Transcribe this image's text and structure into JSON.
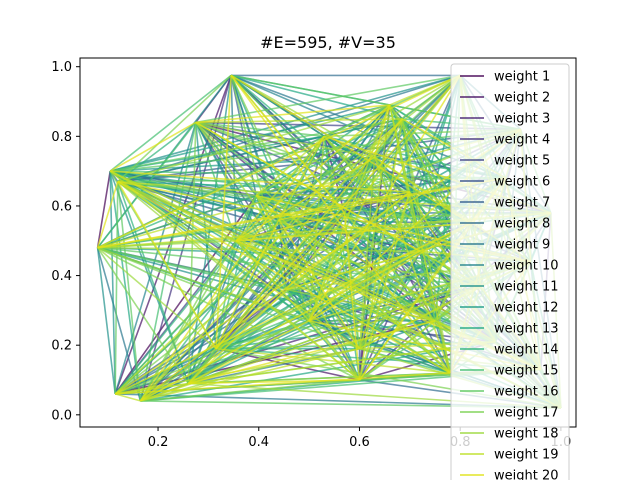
{
  "chart_data": {
    "type": "network",
    "title": "#E=595, #V=35",
    "xlabel": "",
    "ylabel": "",
    "xlim": [
      0.045,
      1.03
    ],
    "ylim": [
      -0.035,
      1.025
    ],
    "xticks": [
      0.2,
      0.4,
      0.6,
      0.8,
      1.0
    ],
    "xtick_labels": [
      "0.2",
      "0.4",
      "0.6",
      "0.8",
      "1.0"
    ],
    "yticks": [
      0.0,
      0.2,
      0.4,
      0.6,
      0.8,
      1.0
    ],
    "ytick_labels": [
      "0.0",
      "0.2",
      "0.4",
      "0.6",
      "0.8",
      "1.0"
    ],
    "grid": false,
    "colormap": "viridis",
    "edge_alpha": 0.7,
    "nodes": [
      [
        0.08,
        0.48
      ],
      [
        0.105,
        0.7
      ],
      [
        0.12,
        0.67
      ],
      [
        0.115,
        0.06
      ],
      [
        0.165,
        0.04
      ],
      [
        0.26,
        0.09
      ],
      [
        0.275,
        0.84
      ],
      [
        0.345,
        0.975
      ],
      [
        0.315,
        0.19
      ],
      [
        0.355,
        0.5
      ],
      [
        0.395,
        0.63
      ],
      [
        0.44,
        0.56
      ],
      [
        0.455,
        0.36
      ],
      [
        0.5,
        0.27
      ],
      [
        0.53,
        0.8
      ],
      [
        0.57,
        0.58
      ],
      [
        0.6,
        0.1
      ],
      [
        0.6,
        0.19
      ],
      [
        0.63,
        0.74
      ],
      [
        0.66,
        0.89
      ],
      [
        0.685,
        0.85
      ],
      [
        0.7,
        0.64
      ],
      [
        0.72,
        0.47
      ],
      [
        0.75,
        0.27
      ],
      [
        0.78,
        0.12
      ],
      [
        0.8,
        0.975
      ],
      [
        0.82,
        0.55
      ],
      [
        0.84,
        0.37
      ],
      [
        0.87,
        0.21
      ],
      [
        0.89,
        0.68
      ],
      [
        0.92,
        0.82
      ],
      [
        0.94,
        0.44
      ],
      [
        0.96,
        0.13
      ],
      [
        0.98,
        0.58
      ],
      [
        1.0,
        0.02
      ]
    ],
    "legend": {
      "placement": "upper-right",
      "entries": [
        "weight 1",
        "weight 2",
        "weight 3",
        "weight 4",
        "weight 5",
        "weight 6",
        "weight 7",
        "weight 8",
        "weight 9",
        "weight 10",
        "weight 11",
        "weight 12",
        "weight 13",
        "weight 14",
        "weight 15",
        "weight 16",
        "weight 17",
        "weight 18",
        "weight 19",
        "weight 20"
      ],
      "colors": [
        "#440154",
        "#471365",
        "#482475",
        "#463480",
        "#414487",
        "#3b528b",
        "#355f8d",
        "#2f6c8e",
        "#2a788e",
        "#25848e",
        "#21918c",
        "#1e9c89",
        "#22a884",
        "#2fb47c",
        "#44bf70",
        "#5ec962",
        "#7ad151",
        "#9bd93c",
        "#bddf26",
        "#dfe318"
      ]
    }
  }
}
